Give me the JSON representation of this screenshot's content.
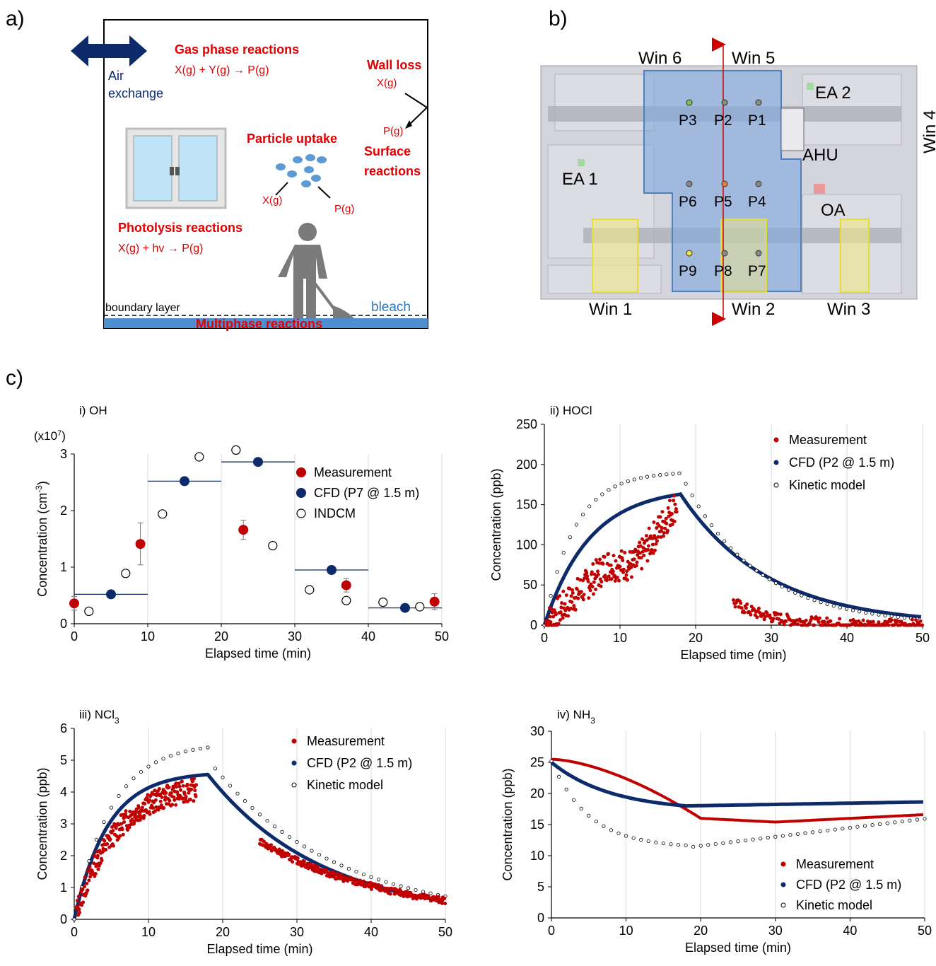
{
  "panels": {
    "a": "a)",
    "b": "b)",
    "c": "c)"
  },
  "panel_a": {
    "air_exchange_1": "Air",
    "air_exchange_2": "exchange",
    "gas_title": "Gas phase reactions",
    "gas_eq": "X(g) + Y(g) → P(g)",
    "wall_title": "Wall loss",
    "wall_x": "X(g)",
    "wall_p": "P(g)",
    "surface_1": "Surface",
    "surface_2": "reactions",
    "particle_title": "Particle uptake",
    "particle_x": "X(g)",
    "particle_p": "P(g)",
    "photo_title": "Photolysis reactions",
    "photo_eq": "X(g) + hv → P(g)",
    "boundary": "boundary layer",
    "bleach": "bleach",
    "multiphase": "Multiphase reactions"
  },
  "panel_b": {
    "win6": "Win 6",
    "win5": "Win 5",
    "win4": "Win 4",
    "win1": "Win 1",
    "win2": "Win 2",
    "win3": "Win 3",
    "ea1": "EA 1",
    "ea2": "EA 2",
    "ahu": "AHU",
    "oa": "OA",
    "points": [
      "P3",
      "P2",
      "P1",
      "P6",
      "P5",
      "P4",
      "P9",
      "P8",
      "P7"
    ]
  },
  "chart_data": [
    {
      "type": "scatter",
      "title": "i) OH",
      "xlabel": "Elapsed time (min)",
      "ylabel": "Concentration (cm-3)",
      "multiplier": "(x10^7)",
      "xlim": [
        0,
        50
      ],
      "ylim": [
        0,
        3
      ],
      "xticks": [
        0,
        10,
        20,
        30,
        40,
        50
      ],
      "yticks": [
        0,
        1,
        2,
        3
      ],
      "series": [
        {
          "name": "Measurement",
          "color": "#c00000",
          "x": [
            0,
            9,
            23,
            37,
            49
          ],
          "y": [
            0.36,
            1.41,
            1.66,
            0.68,
            0.39
          ],
          "err": [
            0.12,
            0.37,
            0.17,
            0.12,
            0.14
          ]
        },
        {
          "name": "CFD (P7 @ 1.5 m)",
          "color": "#0d2a6b",
          "x": [
            5,
            15,
            25,
            35,
            45
          ],
          "y": [
            0.52,
            2.52,
            2.86,
            0.95,
            0.28
          ],
          "bars": [
            [
              0,
              10
            ],
            [
              10,
              20
            ],
            [
              20,
              30
            ],
            [
              30,
              40
            ],
            [
              40,
              50
            ]
          ]
        },
        {
          "name": "INDCM",
          "color": "#000000",
          "x": [
            2,
            7,
            12,
            17,
            22,
            27,
            32,
            37,
            42,
            47
          ],
          "y": [
            0.22,
            0.89,
            1.94,
            2.95,
            3.07,
            1.38,
            0.6,
            0.41,
            0.38,
            0.3
          ]
        }
      ]
    },
    {
      "type": "line",
      "title": "ii) HOCl",
      "xlabel": "Elapsed time (min)",
      "ylabel": "Concentration (ppb)",
      "xlim": [
        0,
        50
      ],
      "ylim": [
        0,
        250
      ],
      "xticks": [
        0,
        10,
        20,
        30,
        40,
        50
      ],
      "yticks": [
        0,
        50,
        100,
        150,
        200,
        250
      ],
      "series": [
        {
          "name": "Measurement",
          "color": "#c00000"
        },
        {
          "name": "CFD (P2 @ 1.5 m)",
          "color": "#0d2a6b"
        },
        {
          "name": "Kinetic model",
          "color": "#000000"
        }
      ]
    },
    {
      "type": "line",
      "title": "iii) NCl3",
      "xlabel": "Elapsed time (min)",
      "ylabel": "Concentration (ppb)",
      "xlim": [
        0,
        50
      ],
      "ylim": [
        0,
        6
      ],
      "xticks": [
        0,
        10,
        20,
        30,
        40,
        50
      ],
      "yticks": [
        0,
        1,
        2,
        3,
        4,
        5,
        6
      ],
      "series": [
        {
          "name": "Measurement",
          "color": "#c00000"
        },
        {
          "name": "CFD (P2 @ 1.5 m)",
          "color": "#0d2a6b"
        },
        {
          "name": "Kinetic model",
          "color": "#000000"
        }
      ]
    },
    {
      "type": "line",
      "title": "iv) NH3",
      "xlabel": "Elapsed time (min)",
      "ylabel": "Concentration (ppb)",
      "xlim": [
        0,
        50
      ],
      "ylim": [
        0,
        30
      ],
      "xticks": [
        0,
        10,
        20,
        30,
        40,
        50
      ],
      "yticks": [
        0,
        5,
        10,
        15,
        20,
        25,
        30
      ],
      "series": [
        {
          "name": "Measurement",
          "color": "#c00000"
        },
        {
          "name": "CFD (P2 @ 1.5 m)",
          "color": "#0d2a6b"
        },
        {
          "name": "Kinetic model",
          "color": "#000000"
        }
      ]
    }
  ]
}
